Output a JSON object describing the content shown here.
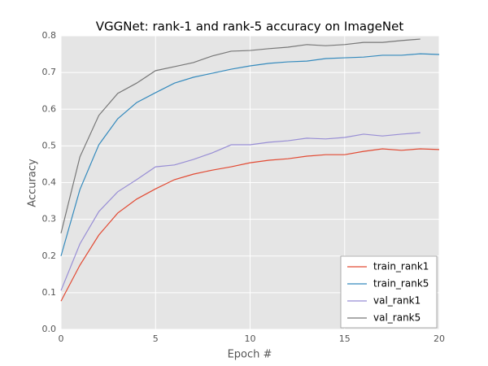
{
  "chart_data": {
    "type": "line",
    "title": "VGGNet: rank-1 and rank-5 accuracy on ImageNet",
    "xlabel": "Epoch #",
    "ylabel": "Accuracy",
    "x": [
      0,
      1,
      2,
      3,
      4,
      5,
      6,
      7,
      8,
      9,
      10,
      11,
      12,
      13,
      14,
      15,
      16,
      17,
      18,
      19,
      20
    ],
    "series": [
      {
        "name": "train_rank1",
        "color": "#e24a33",
        "values": [
          0.077,
          0.175,
          0.257,
          0.317,
          0.355,
          0.383,
          0.408,
          0.423,
          0.434,
          0.443,
          0.454,
          0.461,
          0.465,
          0.472,
          0.476,
          0.476,
          0.485,
          0.492,
          0.488,
          0.492,
          0.49
        ]
      },
      {
        "name": "train_rank5",
        "color": "#348abd",
        "values": [
          0.2,
          0.381,
          0.503,
          0.574,
          0.618,
          0.645,
          0.671,
          0.687,
          0.698,
          0.709,
          0.718,
          0.725,
          0.729,
          0.731,
          0.738,
          0.74,
          0.742,
          0.747,
          0.747,
          0.751,
          0.749
        ]
      },
      {
        "name": "val_rank1",
        "color": "#988ed5",
        "values": [
          0.106,
          0.233,
          0.321,
          0.375,
          0.408,
          0.443,
          0.448,
          0.463,
          0.481,
          0.503,
          0.503,
          0.51,
          0.514,
          0.521,
          0.519,
          0.523,
          0.532,
          0.527,
          0.532,
          0.536,
          null
        ]
      },
      {
        "name": "val_rank5",
        "color": "#777777",
        "values": [
          0.262,
          0.47,
          0.583,
          0.643,
          0.671,
          0.705,
          0.716,
          0.727,
          0.745,
          0.758,
          0.76,
          0.765,
          0.769,
          0.776,
          0.773,
          0.776,
          0.782,
          0.782,
          0.787,
          0.791,
          null
        ]
      }
    ],
    "xlim": [
      0,
      20
    ],
    "xticks": [
      0,
      5,
      10,
      15,
      20
    ],
    "ylim": [
      0,
      0.8
    ],
    "yticks": [
      {
        "value": 0,
        "label": "0.0"
      },
      0.1,
      0.2,
      0.3,
      0.4,
      0.5,
      0.6,
      0.7,
      0.8
    ],
    "grid": true,
    "legend": "lower right"
  }
}
